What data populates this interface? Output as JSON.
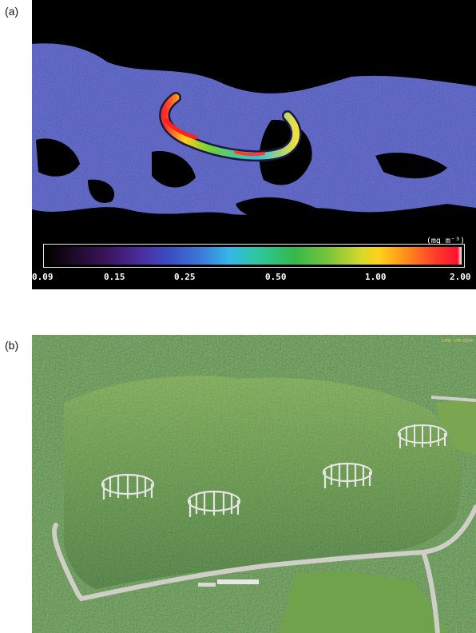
{
  "panels": {
    "a": {
      "label": "(a)"
    },
    "b": {
      "label": "(b)"
    }
  },
  "colorbar": {
    "unit": "(mg m⁻³)",
    "ticks": [
      "0.09",
      "0.15",
      "0.25",
      "0.50",
      "1.00",
      "2.00"
    ]
  },
  "photo": {
    "corner_stamp": "DIMS STM-0504"
  },
  "colors": {
    "background_a": "#000000",
    "field_blue": "#3b3fb8",
    "forest_dark": "#2f5a2a",
    "forest_light": "#7fa64a",
    "road": "#cfcfc8",
    "ring_rods": "#e6e6e6"
  }
}
